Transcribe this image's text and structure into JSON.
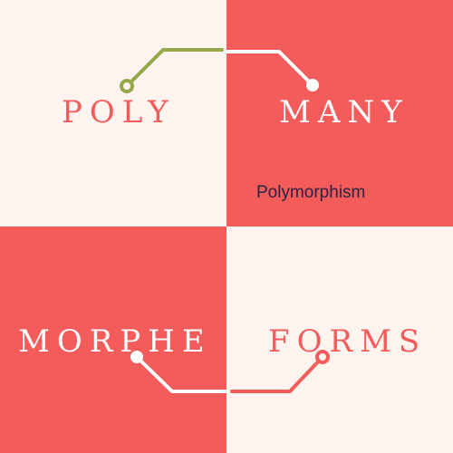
{
  "colors": {
    "cream": "#fdf3ef",
    "coral": "#f45b5b",
    "olive": "#97a84a",
    "white": "#ffffff",
    "navy": "#2b2340"
  },
  "words": {
    "poly": "POLY",
    "many": "MANY",
    "morphe": "MORPHE",
    "forms": "FORMS"
  },
  "caption": "Polymorphism"
}
